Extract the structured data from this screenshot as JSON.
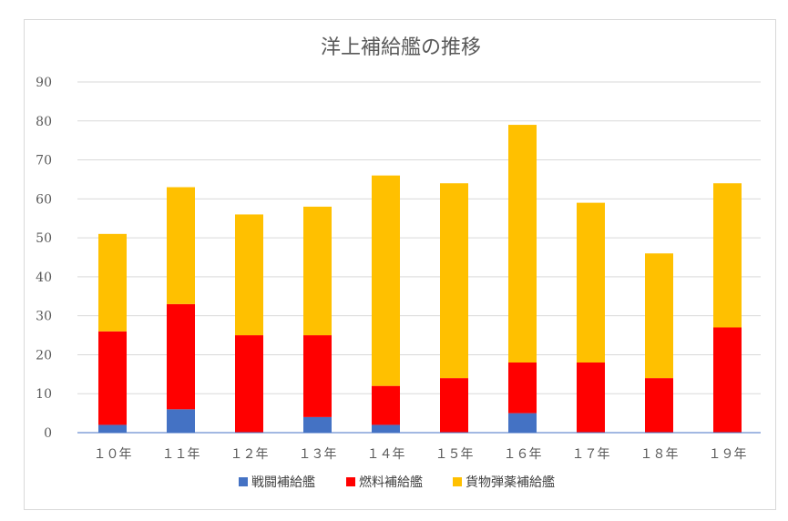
{
  "chart_data": {
    "type": "bar",
    "stacked": true,
    "title": "洋上補給艦の推移",
    "categories": [
      "１０年",
      "１１年",
      "１２年",
      "１３年",
      "１４年",
      "１５年",
      "１６年",
      "１７年",
      "１８年",
      "１９年"
    ],
    "series": [
      {
        "name": "戦闘補給艦",
        "color": "#4472c4",
        "values": [
          2,
          6,
          0,
          4,
          2,
          0,
          5,
          0,
          0,
          0
        ]
      },
      {
        "name": "燃料補給艦",
        "color": "#ff0000",
        "values": [
          24,
          27,
          25,
          21,
          10,
          14,
          13,
          18,
          14,
          27
        ]
      },
      {
        "name": "貨物弾薬補給艦",
        "color": "#ffc000",
        "values": [
          25,
          30,
          31,
          33,
          54,
          50,
          61,
          41,
          32,
          37
        ]
      }
    ],
    "ylim": [
      0,
      90
    ],
    "yticks": [
      0,
      10,
      20,
      30,
      40,
      50,
      60,
      70,
      80,
      90
    ],
    "grid": true,
    "legend": "bottom",
    "colors": {
      "grid": "#d9d9d9",
      "axis": "#4472c4",
      "text": "#595959"
    }
  }
}
